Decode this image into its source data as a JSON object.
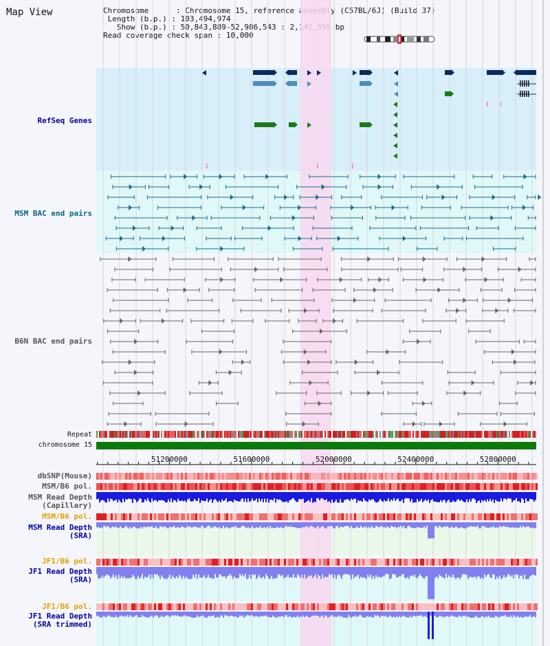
{
  "title": "Map View",
  "info": {
    "chromosome_key": "Chromosome",
    "chromosome_val": "Chromosome 15, reference assembly (C57BL/6J) (Build 37)",
    "length_key": "Length (b.p.)",
    "length_val": "103,494,974",
    "show_key": "Show (b.p.)",
    "show_val": "50,843,889-52,986,543 : 2,142,655 bp",
    "coverage_key": "Read coverage check span",
    "coverage_val": "10,000"
  },
  "tracks": {
    "refseq": "RefSeq Genes",
    "msm_bac": "MSM BAC end pairs",
    "b6n_bac": "B6N BAC end pairs",
    "repeat": "Repeat",
    "chromosome": "chromosome 15",
    "dbsnp": "dbSNP(Mouse)",
    "msm_b6_pol": "MSM/B6 pol.",
    "msm_depth_cap_1": "MSM Read Depth",
    "msm_depth_cap_2": "(Capillary)",
    "msm_b6_pol_sra": "MSM/B6 pol.",
    "msm_depth_sra_1": "MSM Read Depth",
    "msm_depth_sra_2": "(SRA)",
    "jf1_b6_pol_1": "JF1/B6 pol.",
    "jf1_depth_1": "JF1 Read Depth",
    "jf1_depth_sra": "(SRA)",
    "jf1_b6_pol_2": "JF1/B6 pol.",
    "jf1_depth_2": "JF1 Read Depth",
    "jf1_depth_trim": "(SRA trimmed)"
  },
  "axis": {
    "ticks": [
      "51200000",
      "51600000",
      "52000000",
      "52400000",
      "52800000"
    ],
    "range": [
      50843889,
      52986543
    ]
  },
  "colors": {
    "refseq_bg": "#d8eef8",
    "msm_bg": "#e0f8f8",
    "highlight": "#f8d8f0",
    "gene_dark": "#0a2a5c",
    "gene_mid": "#4a8ec0",
    "gene_green": "#1a7a1a",
    "msm_line": "#1a6a8a",
    "b6n_line": "#666666",
    "chrom_green": "#0a7a0a",
    "label_blue": "#0000aa",
    "label_teal": "#006688",
    "label_orange": "#e0a000",
    "label_gray": "#555555"
  }
}
